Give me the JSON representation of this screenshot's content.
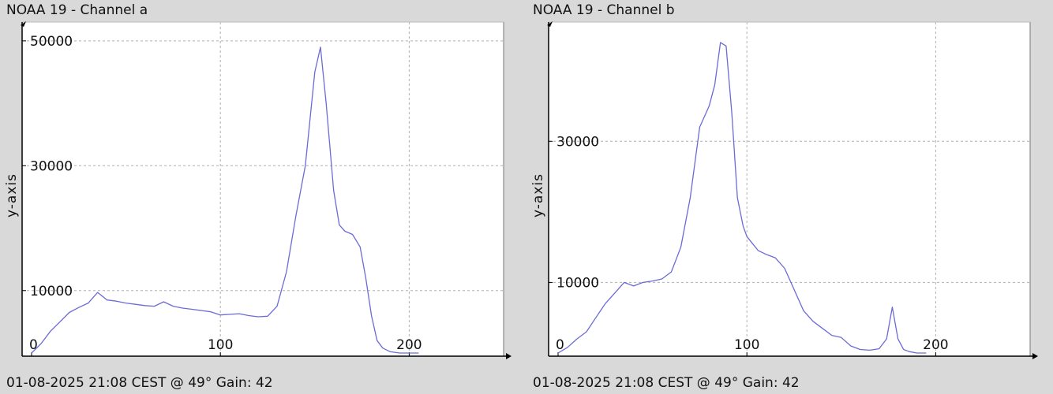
{
  "chart_data": [
    {
      "type": "line",
      "title": "NOAA 19 - Channel a",
      "footer": "01-08-2025 21:08 CEST @ 49° Gain: 42",
      "ylabel": "y-axis",
      "xlabel": "",
      "xlim": [
        0,
        250
      ],
      "ylim": [
        0,
        52000
      ],
      "xticks": [
        0,
        100,
        200
      ],
      "xtick_labels": [
        "0",
        "100",
        "200"
      ],
      "yticks": [
        10000,
        30000,
        50000
      ],
      "ytick_labels": [
        "10000",
        "30000",
        "50000"
      ],
      "grid": true,
      "line_color": "#6b6bd6",
      "series": [
        {
          "x": [
            0,
            5,
            10,
            15,
            20,
            25,
            30,
            35,
            40,
            45,
            50,
            55,
            60,
            65,
            70,
            75,
            80,
            85,
            90,
            95,
            100,
            105,
            110,
            115,
            120,
            125,
            130,
            135,
            140,
            145,
            150,
            153,
            156,
            160,
            163,
            166,
            170,
            174,
            177,
            180,
            183,
            186,
            190,
            195,
            200,
            205
          ],
          "values": [
            0,
            1500,
            3500,
            5000,
            6500,
            7300,
            8000,
            9700,
            8500,
            8300,
            8000,
            7800,
            7600,
            7500,
            8200,
            7500,
            7200,
            7000,
            6800,
            6600,
            6100,
            6200,
            6300,
            6000,
            5800,
            5900,
            7500,
            13000,
            22000,
            30000,
            45000,
            49000,
            40000,
            26000,
            20500,
            19500,
            19000,
            17000,
            12000,
            6000,
            2000,
            800,
            200,
            0,
            0,
            0
          ]
        }
      ]
    },
    {
      "type": "line",
      "title": "NOAA 19 - Channel b",
      "footer": "01-08-2025 21:08 CEST @ 49° Gain: 42",
      "ylabel": "y-axis",
      "xlabel": "",
      "xlim": [
        0,
        250
      ],
      "ylim": [
        0,
        46000
      ],
      "xticks": [
        0,
        100,
        200
      ],
      "xtick_labels": [
        "0",
        "100",
        "200"
      ],
      "yticks": [
        10000,
        30000
      ],
      "ytick_labels": [
        "10000",
        "30000"
      ],
      "grid": true,
      "line_color": "#6b6bd6",
      "series": [
        {
          "x": [
            0,
            5,
            10,
            15,
            20,
            25,
            30,
            35,
            40,
            45,
            50,
            55,
            60,
            65,
            70,
            75,
            80,
            83,
            86,
            89,
            92,
            95,
            98,
            100,
            103,
            106,
            110,
            115,
            120,
            125,
            130,
            135,
            140,
            145,
            150,
            155,
            160,
            165,
            170,
            174,
            177,
            180,
            183,
            186,
            190,
            195
          ],
          "values": [
            0,
            800,
            2000,
            3000,
            5000,
            7000,
            8500,
            10000,
            9500,
            10000,
            10200,
            10500,
            11500,
            15000,
            22000,
            32000,
            35000,
            38000,
            44000,
            43500,
            34000,
            22000,
            18000,
            16500,
            15500,
            14500,
            14000,
            13500,
            12000,
            9000,
            6000,
            4500,
            3500,
            2500,
            2200,
            1000,
            500,
            400,
            600,
            2000,
            6500,
            2000,
            500,
            200,
            0,
            0
          ]
        }
      ]
    }
  ]
}
